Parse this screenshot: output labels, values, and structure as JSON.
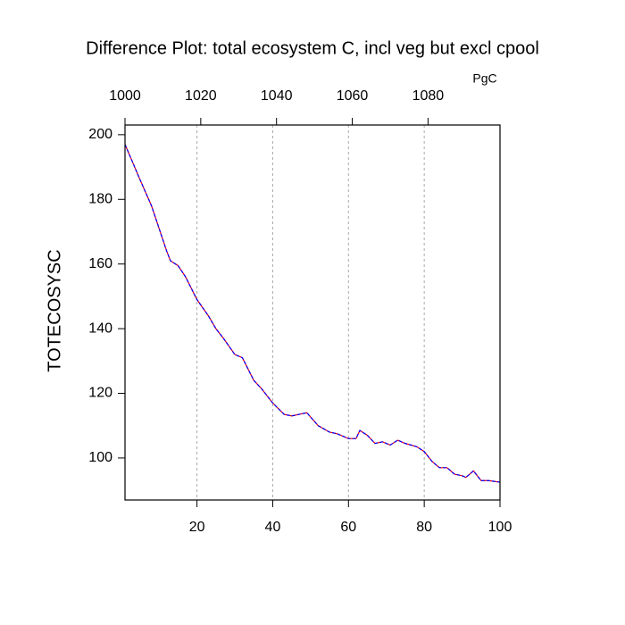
{
  "chart_data": {
    "type": "line",
    "title": "Difference Plot: total ecosystem C, incl veg but excl cpool",
    "ylabel": "TOTECOSYSC",
    "x2label": "PgC",
    "x": [
      1,
      5,
      8,
      10,
      12,
      13,
      15,
      17,
      20,
      23,
      25,
      27,
      30,
      32,
      35,
      37,
      40,
      43,
      45,
      47,
      49,
      52,
      55,
      57,
      60,
      62,
      63,
      65,
      67,
      69,
      71,
      73,
      75,
      78,
      80,
      82,
      84,
      86,
      88,
      90,
      91,
      93,
      95,
      97,
      100
    ],
    "series": [
      {
        "color": "#ff0000",
        "dashed": false,
        "values": [
          197,
          186,
          178,
          171,
          164,
          161,
          159.5,
          156,
          149,
          144,
          140,
          137,
          132,
          131,
          124,
          121.5,
          117,
          113.5,
          113,
          113.5,
          114,
          110,
          108,
          107.5,
          106,
          106,
          108.5,
          107,
          104.5,
          105,
          104,
          105.5,
          104.5,
          103.5,
          102,
          99,
          97,
          97,
          95,
          94.5,
          94,
          96,
          93,
          93,
          92.5
        ]
      },
      {
        "color": "#0000ff",
        "dashed": true,
        "values": [
          197,
          186,
          178,
          171,
          164,
          161,
          159.5,
          156,
          149,
          144,
          140,
          137,
          132,
          131,
          124,
          121.5,
          117,
          113.5,
          113,
          113.5,
          114,
          110,
          108,
          107.5,
          106,
          106,
          108.5,
          107,
          104.5,
          105,
          104,
          105.5,
          104.5,
          103.5,
          102,
          99,
          97,
          97,
          95,
          94.5,
          94,
          96,
          93,
          93,
          92.5
        ]
      }
    ],
    "xlim": [
      1,
      100
    ],
    "xticks": [
      20,
      40,
      60,
      80,
      100
    ],
    "xtick_color": "#ff0000",
    "x2lim": [
      1000,
      1099
    ],
    "x2ticks": [
      1000,
      1020,
      1040,
      1060,
      1080
    ],
    "x2tick_color": "#0000ff",
    "ylim": [
      87,
      203
    ],
    "yticks": [
      100,
      120,
      140,
      160,
      180,
      200
    ],
    "grid": true
  }
}
